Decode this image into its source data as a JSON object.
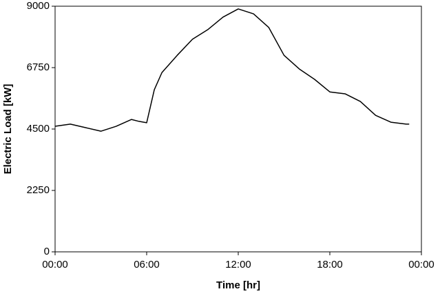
{
  "chart_data": {
    "type": "line",
    "x_label": "Time [hr]",
    "y_label": "Electric Load [kW]",
    "x": [
      0,
      1,
      2,
      3,
      4,
      5,
      5.5,
      6,
      6.5,
      7,
      8,
      9,
      10,
      11,
      12,
      13,
      14,
      15,
      16,
      17,
      18,
      19,
      20,
      21,
      22,
      23,
      23.2
    ],
    "series": [
      {
        "name": "Electric Load",
        "color": "#000000",
        "values": [
          4600,
          4680,
          4550,
          4420,
          4600,
          4850,
          4780,
          4730,
          5940,
          6570,
          7200,
          7790,
          8140,
          8600,
          8900,
          8720,
          8220,
          7200,
          6700,
          6320,
          5860,
          5790,
          5510,
          5000,
          4750,
          4680,
          4680
        ]
      }
    ],
    "xlim": [
      0,
      24
    ],
    "xticks": [
      {
        "value": 0,
        "label": "00:00"
      },
      {
        "value": 6,
        "label": "06:00"
      },
      {
        "value": 12,
        "label": "12:00"
      },
      {
        "value": 18,
        "label": "18:00"
      },
      {
        "value": 24,
        "label": "00:00"
      }
    ],
    "ylim": [
      0,
      9000
    ],
    "yticks": [
      0,
      2250,
      4500,
      6750,
      9000
    ],
    "grid": false
  }
}
